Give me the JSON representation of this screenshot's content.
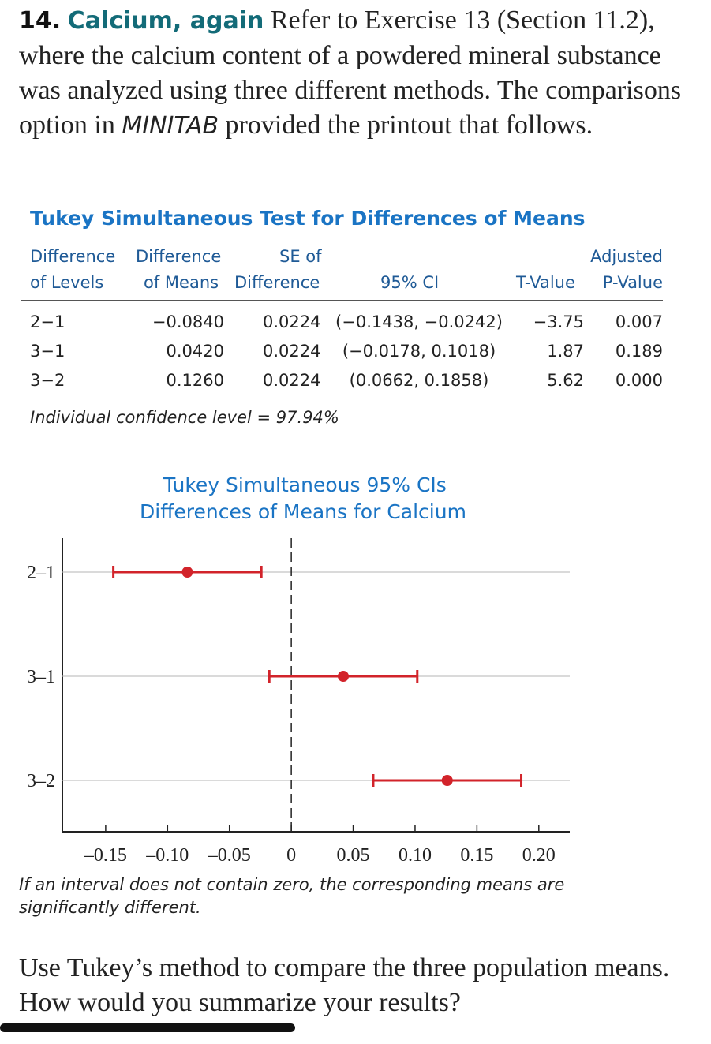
{
  "problem": {
    "number": "14.",
    "title": "Calcium, again",
    "text_a": "Refer to Exercise 13 (Section 11.2), where the calcium content of a powdered mineral substance was analyzed using three different methods. The comparisons option in",
    "software": "MINITAB",
    "text_b": "provided the printout that follows."
  },
  "table": {
    "title": "Tukey Simultaneous Test for Differences of Means",
    "headers": {
      "levels_1": "Difference",
      "levels_2": "of Levels",
      "means_1": "Difference",
      "means_2": "of Means",
      "se_1": "SE of",
      "se_2": "Difference",
      "ci": "95% CI",
      "t": "T-Value",
      "p_1": "Adjusted",
      "p_2": "P-Value"
    },
    "rows": [
      {
        "levels": "2−1",
        "diff": "−0.0840",
        "se": "0.0224",
        "ci": "(−0.1438, −0.0242)",
        "t": "−3.75",
        "p": "0.007"
      },
      {
        "levels": "3−1",
        "diff": "0.0420",
        "se": "0.0224",
        "ci": "(−0.0178, 0.1018)",
        "t": "1.87",
        "p": "0.189"
      },
      {
        "levels": "3−2",
        "diff": "0.1260",
        "se": "0.0224",
        "ci": "(0.0662, 0.1858)",
        "t": "5.62",
        "p": "0.000"
      }
    ],
    "confidence_note": "Individual confidence level = 97.94%"
  },
  "chart_data": {
    "type": "scatter",
    "title": "Tukey Simultaneous 95% CIs",
    "subtitle": "Differences of Means for Calcium",
    "categories": [
      "2–1",
      "3–1",
      "3–2"
    ],
    "estimates": [
      -0.084,
      0.042,
      0.126
    ],
    "lower": [
      -0.1438,
      -0.0178,
      0.0662
    ],
    "upper": [
      -0.0242,
      0.1018,
      0.1858
    ],
    "xticks": [
      -0.15,
      -0.1,
      -0.05,
      0,
      0.05,
      0.1,
      0.15,
      0.2
    ],
    "xtick_labels": [
      "–0.15",
      "–0.10",
      "–0.05",
      "0",
      "0.05",
      "0.10",
      "0.15",
      "0.20"
    ],
    "xlim": [
      -0.185,
      0.225
    ],
    "reference_line": 0,
    "grid": true,
    "color": "#d2232a",
    "note": "If an interval does not contain zero, the corresponding means are significantly different."
  },
  "question": "Use Tukey’s method to compare the three population means. How would you summarize your results?"
}
